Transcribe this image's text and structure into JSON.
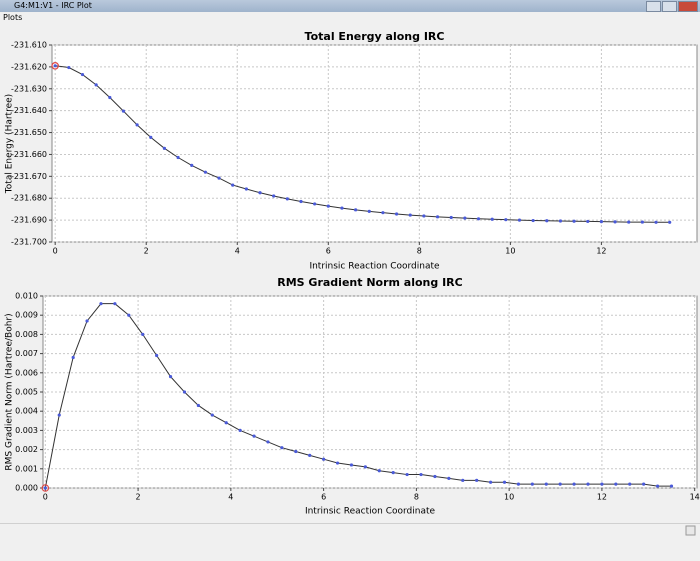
{
  "window": {
    "title": "G4:M1:V1 - IRC Plot",
    "menu": [
      "Plots"
    ]
  },
  "chart_data": [
    {
      "type": "line",
      "title": "Total Energy along IRC",
      "x_label": "Intrinsic Reaction Coordinate",
      "y_label": "Total Energy (Hartree)",
      "x": [
        0,
        0.3,
        0.6,
        0.9,
        1.2,
        1.5,
        1.8,
        2.1,
        2.4,
        2.7,
        3.0,
        3.3,
        3.6,
        3.9,
        4.2,
        4.5,
        4.8,
        5.1,
        5.4,
        5.7,
        6.0,
        6.3,
        6.6,
        6.9,
        7.2,
        7.5,
        7.8,
        8.1,
        8.4,
        8.7,
        9.0,
        9.3,
        9.6,
        9.9,
        10.2,
        10.5,
        10.8,
        11.1,
        11.4,
        11.7,
        12.0,
        12.3,
        12.6,
        12.9,
        13.2,
        13.5
      ],
      "values": [
        -231.6195,
        -231.6203,
        -231.6235,
        -231.6282,
        -231.634,
        -231.6402,
        -231.6465,
        -231.6522,
        -231.6572,
        -231.6614,
        -231.665,
        -231.6681,
        -231.6708,
        -231.674,
        -231.6758,
        -231.6775,
        -231.679,
        -231.6803,
        -231.6815,
        -231.6826,
        -231.6836,
        -231.6845,
        -231.6853,
        -231.686,
        -231.6866,
        -231.6872,
        -231.6877,
        -231.6881,
        -231.6885,
        -231.6888,
        -231.6891,
        -231.6894,
        -231.6896,
        -231.6898,
        -231.69,
        -231.6902,
        -231.6903,
        -231.6904,
        -231.6905,
        -231.6906,
        -231.6907,
        -231.6908,
        -231.6909,
        -231.6909,
        -231.691,
        -231.691
      ],
      "color": "#333333",
      "marker_color": "#4a5ad8",
      "current_point_color": "#e04848",
      "xlim": [
        -0.07,
        14.1
      ],
      "xticks": [
        0,
        2,
        4,
        6,
        8,
        10,
        12
      ],
      "ylim": [
        -231.7,
        -231.61
      ],
      "yticks": [
        {
          "value": -231.7,
          "label": "-231.700"
        },
        {
          "value": -231.69,
          "label": "-231.690"
        },
        {
          "value": -231.68,
          "label": "-231.680"
        },
        {
          "value": -231.67,
          "label": "-231.670"
        },
        {
          "value": -231.66,
          "label": "-231.660"
        },
        {
          "value": -231.65,
          "label": "-231.650"
        },
        {
          "value": -231.64,
          "label": "-231.640"
        },
        {
          "value": -231.63,
          "label": "-231.630"
        },
        {
          "value": -231.62,
          "label": "-231.620"
        },
        {
          "value": -231.61,
          "label": "-231.610"
        }
      ],
      "grid": true
    },
    {
      "type": "line",
      "title": "RMS Gradient Norm along IRC",
      "x_label": "Intrinsic Reaction Coordinate",
      "y_label": "RMS Gradient Norm (Hartree/Bohr)",
      "x": [
        0,
        0.3,
        0.6,
        0.9,
        1.2,
        1.5,
        1.8,
        2.1,
        2.4,
        2.7,
        3.0,
        3.3,
        3.6,
        3.9,
        4.2,
        4.5,
        4.8,
        5.1,
        5.4,
        5.7,
        6.0,
        6.3,
        6.6,
        6.9,
        7.2,
        7.5,
        7.8,
        8.1,
        8.4,
        8.7,
        9.0,
        9.3,
        9.6,
        9.9,
        10.2,
        10.5,
        10.8,
        11.1,
        11.4,
        11.7,
        12.0,
        12.3,
        12.6,
        12.9,
        13.2,
        13.5
      ],
      "values": [
        0,
        0.0038,
        0.0068,
        0.0087,
        0.0096,
        0.0096,
        0.009,
        0.008,
        0.0069,
        0.0058,
        0.005,
        0.0043,
        0.0038,
        0.0034,
        0.003,
        0.0027,
        0.0024,
        0.0021,
        0.0019,
        0.0017,
        0.0015,
        0.0013,
        0.0012,
        0.0011,
        0.0009,
        0.0008,
        0.0007,
        0.0007,
        0.0006,
        0.0005,
        0.0004,
        0.0004,
        0.0003,
        0.0003,
        0.0002,
        0.0002,
        0.0002,
        0.0002,
        0.0002,
        0.0002,
        0.0002,
        0.0002,
        0.0002,
        0.0002,
        0.0001,
        0.0001
      ],
      "color": "#333333",
      "marker_color": "#4a5ad8",
      "current_point_color": "#e04848",
      "xlim": [
        -0.05,
        14.05
      ],
      "xticks": [
        0,
        2,
        4,
        6,
        8,
        10,
        12,
        14
      ],
      "ylim": [
        0,
        0.01
      ],
      "yticks": [
        {
          "value": 0,
          "label": "0.000"
        },
        0.001,
        0.002,
        0.003,
        0.004,
        0.005,
        0.006,
        0.007,
        0.008,
        0.009,
        {
          "value": 0.01,
          "label": "0.010"
        }
      ],
      "grid": true
    }
  ]
}
